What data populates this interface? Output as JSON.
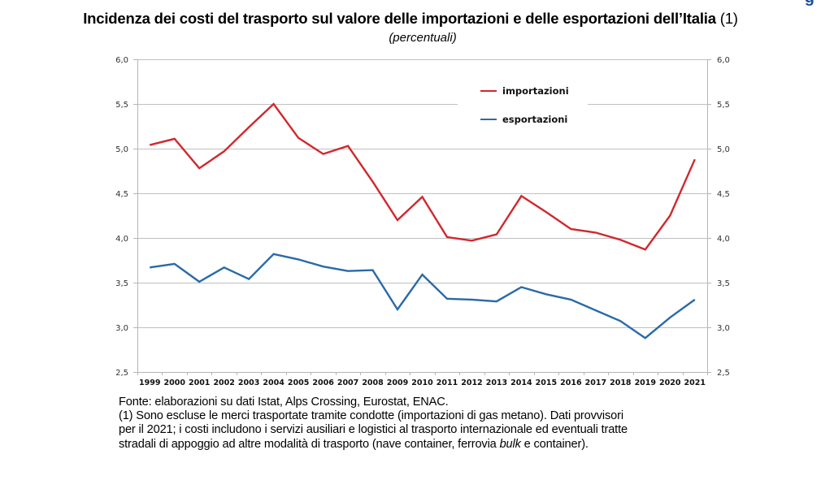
{
  "figure_corner_glyph": "g",
  "header": {
    "title": "Incidenza dei costi del trasporto sul valore delle importazioni e delle esportazioni dell’Italia",
    "title_note": "(1)",
    "subtitle": "(percentuali)"
  },
  "footnote": {
    "source": "Fonte: elaborazioni su dati Istat, Alps Crossing, Eurostat, ENAC.",
    "note_line1": "(1) Sono escluse le merci trasportate tramite condotte (importazioni di gas metano). Dati provvisori",
    "note_line2": "per il 2021; i costi includono i servizi ausiliari e logistici al trasporto internazionale ed eventuali tratte",
    "note_line3_before": "stradali di appoggio ad altre modalità di trasporto (nave container, ferrovia ",
    "note_line3_italic": "bulk",
    "note_line3_after": " e container)."
  },
  "chart_data": {
    "type": "line",
    "title": "Incidenza dei costi del trasporto sul valore delle importazioni e delle esportazioni dell’Italia (1)",
    "subtitle": "(percentuali)",
    "xlabel": "",
    "ylabel": "",
    "ylim": [
      2.5,
      6.0
    ],
    "yticks": [
      "2,5",
      "3,0",
      "3,5",
      "4,0",
      "4,5",
      "5,0",
      "5,5",
      "6,0"
    ],
    "ytick_values": [
      2.5,
      3.0,
      3.5,
      4.0,
      4.5,
      5.0,
      5.5,
      6.0
    ],
    "secondary_y_axis": "mirror",
    "grid": "horizontal",
    "legend_position": "top-right",
    "categories": [
      "1999",
      "2000",
      "2001",
      "2002",
      "2003",
      "2004",
      "2005",
      "2006",
      "2007",
      "2008",
      "2009",
      "2010",
      "2011",
      "2012",
      "2013",
      "2014",
      "2015",
      "2016",
      "2017",
      "2018",
      "2019",
      "2020",
      "2021"
    ],
    "series": [
      {
        "name": "importazioni",
        "color": "#d0282e",
        "values": [
          5.04,
          5.11,
          4.78,
          4.97,
          5.24,
          5.5,
          5.12,
          4.94,
          5.03,
          4.63,
          4.2,
          4.46,
          4.01,
          3.97,
          4.04,
          4.47,
          4.29,
          4.1,
          4.06,
          3.98,
          3.87,
          4.25,
          4.88
        ]
      },
      {
        "name": "esportazioni",
        "color": "#2a6aa8",
        "values": [
          3.67,
          3.71,
          3.51,
          3.67,
          3.54,
          3.82,
          3.76,
          3.68,
          3.63,
          3.64,
          3.2,
          3.59,
          3.32,
          3.31,
          3.29,
          3.45,
          3.37,
          3.31,
          3.19,
          3.07,
          2.88,
          3.11,
          3.31
        ]
      }
    ]
  }
}
